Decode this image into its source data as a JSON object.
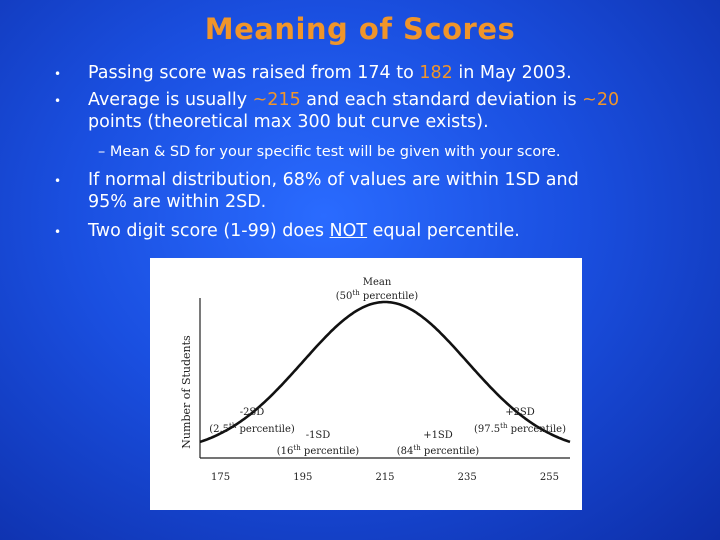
{
  "slide": {
    "title": "Meaning of Scores",
    "bullets": [
      {
        "pre": "Passing score was raised from 174 to ",
        "highlight": "182",
        "post": " in May 2003."
      },
      {
        "pre": "Average is usually ",
        "highlight1": "~215",
        "mid": " and each standard deviation is ",
        "highlight2": "~20",
        "line2": "points (theoretical max 300 but curve exists)."
      },
      {
        "sub": "– Mean & SD for your specific test will be given with your score."
      },
      {
        "line1": "If normal distribution, 68% of values are within 1SD and",
        "line2": "95% are within 2SD."
      },
      {
        "pre": "Two digit score (1-99) does ",
        "emph": "NOT",
        "post": " equal percentile."
      }
    ],
    "bullet_symbol": "•"
  },
  "chart_data": {
    "type": "line",
    "title": "",
    "ylabel": "Number of Students",
    "xlabel": "",
    "x_ticks": [
      "175",
      "195",
      "215",
      "235",
      "255"
    ],
    "mean": 215,
    "sd": 20,
    "xlim": [
      170,
      260
    ],
    "annotations": {
      "mean": {
        "line1": "Mean",
        "line2_pre": "(50",
        "sup": "th",
        "line2_post": " percentile)"
      },
      "m2sd": {
        "line1": "-2SD",
        "line2_pre": "(2.5",
        "sup": "th",
        "line2_post": " percentile)"
      },
      "m1sd": {
        "line1": "-1SD",
        "line2_pre": "(16",
        "sup": "th",
        "line2_post": " percentile)"
      },
      "p1sd": {
        "line1": "+1SD",
        "line2_pre": "(84",
        "sup": "th",
        "line2_post": " percentile)"
      },
      "p2sd": {
        "line1": "+2SD",
        "line2_pre": "(97.5",
        "sup": "th",
        "line2_post": " percentile)"
      }
    }
  }
}
